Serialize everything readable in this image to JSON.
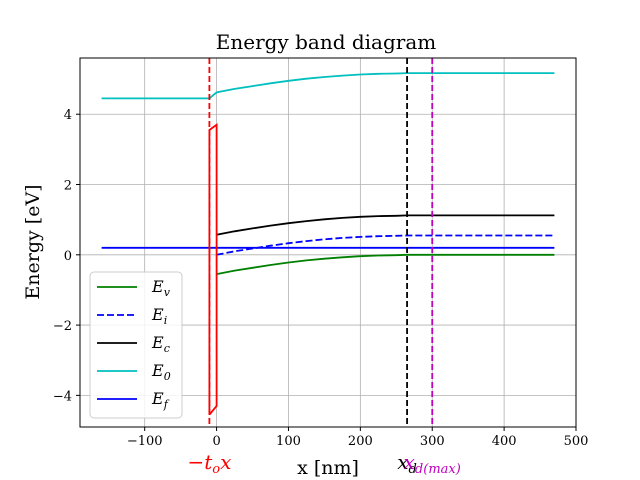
{
  "chart_data": {
    "type": "line",
    "title": "Energy band diagram",
    "xlabel": "x [nm]",
    "ylabel": "Energy [eV]",
    "xlim": [
      -190,
      500
    ],
    "ylim": [
      -4.9,
      5.6
    ],
    "grid": true,
    "x_ticks": [
      -100,
      0,
      100,
      200,
      300,
      400,
      500
    ],
    "y_ticks": [
      -4,
      -2,
      0,
      2,
      4
    ],
    "x_tick_labels": [
      "−100",
      "0",
      "100",
      "200",
      "300",
      "400",
      "500"
    ],
    "y_tick_labels": [
      "−4",
      "−2",
      "0",
      "2",
      "4"
    ],
    "legend_location": "lower-left",
    "series": [
      {
        "key": "Ev",
        "name": "E_v",
        "label_main": "E",
        "label_sub": "v",
        "color": "#008000",
        "style": "solid",
        "x": [
          0,
          25,
          50,
          75,
          100,
          125,
          150,
          175,
          200,
          225,
          250,
          265,
          300,
          350,
          400,
          470
        ],
        "y": [
          -0.55,
          -0.45,
          -0.37,
          -0.29,
          -0.22,
          -0.16,
          -0.11,
          -0.07,
          -0.04,
          -0.02,
          -0.01,
          0,
          0,
          0,
          0,
          0
        ]
      },
      {
        "key": "Ei",
        "name": "E_i",
        "label_main": "E",
        "label_sub": "i",
        "color": "#0000ff",
        "style": "dashed",
        "x": [
          0,
          25,
          50,
          75,
          100,
          125,
          150,
          175,
          200,
          225,
          250,
          265,
          300,
          350,
          400,
          470
        ],
        "y": [
          0.0,
          0.1,
          0.18,
          0.26,
          0.33,
          0.39,
          0.44,
          0.48,
          0.51,
          0.53,
          0.54,
          0.55,
          0.55,
          0.55,
          0.55,
          0.55
        ]
      },
      {
        "key": "Ec",
        "name": "E_c",
        "label_main": "E",
        "label_sub": "c",
        "color": "#000000",
        "style": "solid",
        "x": [
          0,
          25,
          50,
          75,
          100,
          125,
          150,
          175,
          200,
          225,
          250,
          265,
          300,
          350,
          400,
          470
        ],
        "y": [
          0.57,
          0.67,
          0.75,
          0.83,
          0.9,
          0.96,
          1.01,
          1.05,
          1.08,
          1.1,
          1.11,
          1.12,
          1.12,
          1.12,
          1.12,
          1.12
        ]
      },
      {
        "key": "E0",
        "name": "E_0",
        "label_main": "E",
        "label_sub": "0",
        "color": "#00bfbf",
        "style": "solid",
        "x": [
          -160,
          -10,
          0,
          25,
          50,
          75,
          100,
          125,
          150,
          175,
          200,
          225,
          250,
          265,
          300,
          350,
          400,
          470
        ],
        "y": [
          4.45,
          4.45,
          4.62,
          4.72,
          4.8,
          4.88,
          4.95,
          5.01,
          5.06,
          5.1,
          5.13,
          5.15,
          5.16,
          5.17,
          5.17,
          5.17,
          5.17,
          5.17
        ]
      },
      {
        "key": "Ef",
        "name": "E_f",
        "label_main": "E",
        "label_sub": "f",
        "color": "#0000ff",
        "style": "solid",
        "x": [
          -160,
          470
        ],
        "y": [
          0.2,
          0.2
        ]
      }
    ],
    "oxide": {
      "color": "#ff0000",
      "x": [
        -10,
        -10,
        0,
        0,
        -10,
        -10
      ],
      "y": [
        -4.55,
        3.55,
        3.7,
        -4.3,
        -4.55,
        -4.55
      ]
    },
    "vlines": [
      {
        "key": "tox",
        "x": -10,
        "color": "#ff0000",
        "style": "dashed",
        "label_main": "−t",
        "label_sub": "o",
        "label_tail": "x"
      },
      {
        "key": "xd",
        "x": 265,
        "color": "#000000",
        "style": "dashed",
        "label_main": "x",
        "label_sub": "d",
        "label_tail": ""
      },
      {
        "key": "xdmax",
        "x": 300,
        "color": "#bf00bf",
        "style": "dashed",
        "label_main": "x",
        "label_sub": "d(max)",
        "label_tail": ""
      }
    ]
  }
}
